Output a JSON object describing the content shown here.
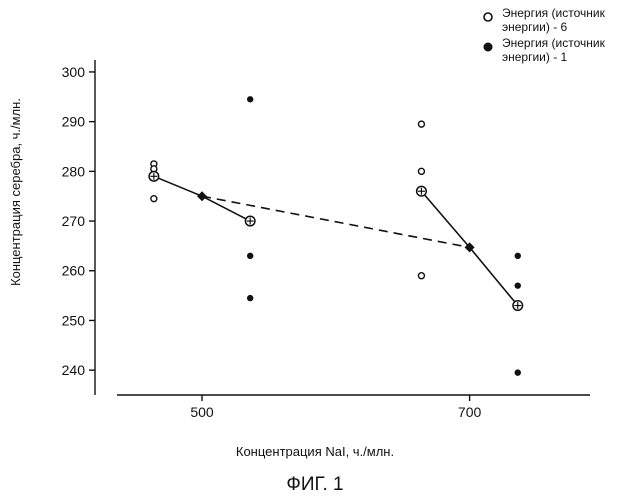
{
  "chart_data": {
    "type": "scatter",
    "title": "",
    "xlabel": "Концентрация NaI,  ч./млн.",
    "ylabel": "Концентрация серебра, ч./млн.",
    "xlim": [
      420,
      790
    ],
    "ylim": [
      235,
      302
    ],
    "x_ticks": [
      500,
      700
    ],
    "y_ticks": [
      240,
      250,
      260,
      270,
      280,
      290,
      300
    ],
    "x_tick_labels": [
      "500",
      "700"
    ],
    "y_tick_labels": [
      "240",
      "250",
      "260",
      "270",
      "280",
      "290",
      "300"
    ],
    "legend_position": "top-right",
    "series": [
      {
        "name": "Энергия (источник\nэнергии) - 6",
        "marker": "open-circle",
        "points": [
          {
            "x": 464,
            "y": 281.5
          },
          {
            "x": 464,
            "y": 280.5
          },
          {
            "x": 464,
            "y": 274.5
          },
          {
            "x": 664,
            "y": 289.5
          },
          {
            "x": 664,
            "y": 280
          },
          {
            "x": 664,
            "y": 259
          }
        ],
        "means": [
          {
            "x": 464,
            "y": 279
          },
          {
            "x": 664,
            "y": 276
          }
        ]
      },
      {
        "name": "Энергия (источник\nэнергии) - 1",
        "marker": "filled-circle",
        "points": [
          {
            "x": 536,
            "y": 294.5
          },
          {
            "x": 536,
            "y": 263
          },
          {
            "x": 536,
            "y": 254.5
          },
          {
            "x": 736,
            "y": 263
          },
          {
            "x": 736,
            "y": 257
          },
          {
            "x": 736,
            "y": 239.5
          }
        ],
        "means": [
          {
            "x": 536,
            "y": 270
          },
          {
            "x": 736,
            "y": 253
          }
        ]
      }
    ],
    "solid_lines": [
      [
        {
          "x": 464,
          "y": 279
        },
        {
          "x": 500,
          "y": 275
        },
        {
          "x": 536,
          "y": 270
        }
      ],
      [
        {
          "x": 664,
          "y": 276
        },
        {
          "x": 700,
          "y": 264.7
        },
        {
          "x": 736,
          "y": 253
        }
      ]
    ],
    "dashed_line": [
      {
        "x": 500,
        "y": 275
      },
      {
        "x": 700,
        "y": 264.7
      }
    ],
    "center_diamonds": [
      {
        "x": 500,
        "y": 275
      },
      {
        "x": 700,
        "y": 264.7
      }
    ]
  },
  "caption": "ФИГ. 1"
}
